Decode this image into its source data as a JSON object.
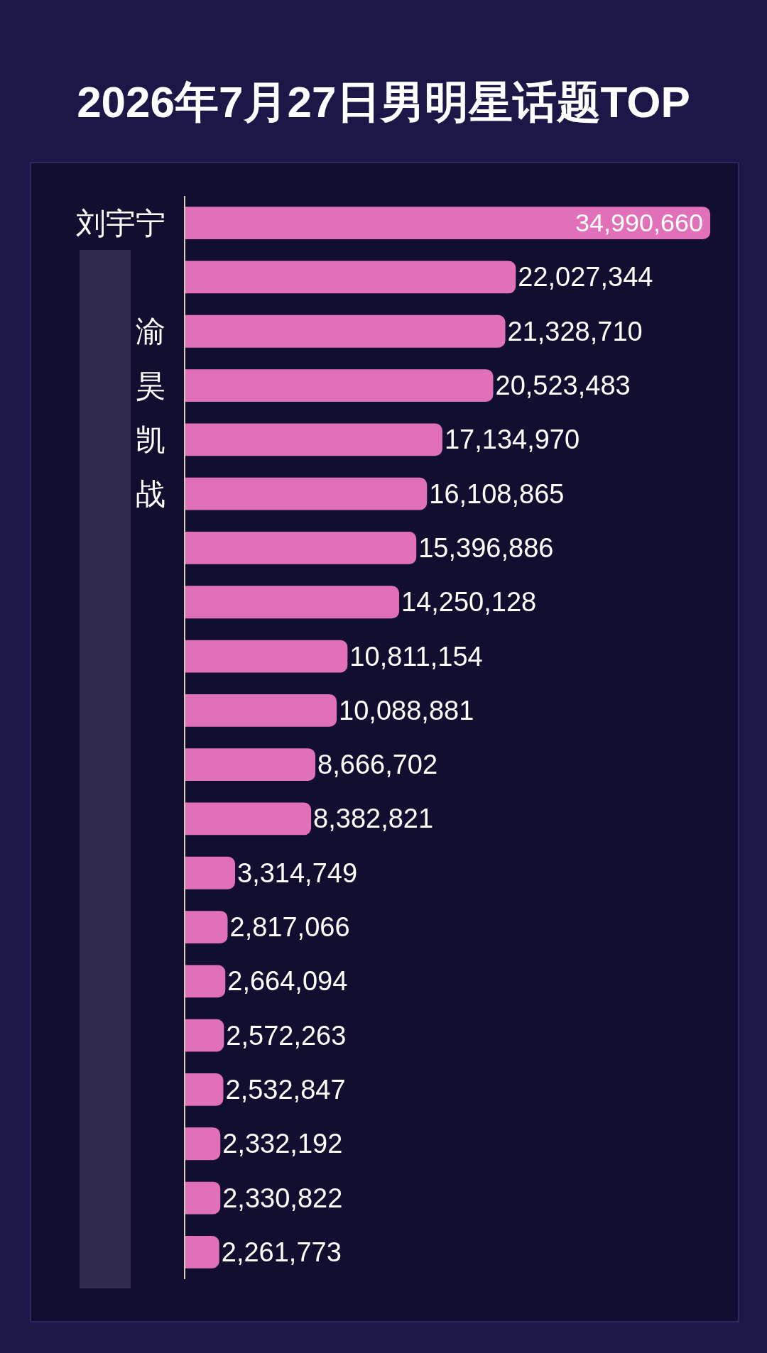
{
  "chart_data": {
    "type": "bar",
    "orientation": "horizontal",
    "title": "2026年7月27日男明星话题TOP",
    "categories": [
      "刘宇宁",
      null,
      "渝",
      "昊",
      "凯",
      "战",
      null,
      null,
      null,
      null,
      null,
      null,
      null,
      null,
      null,
      null,
      null,
      null,
      null,
      null
    ],
    "values": [
      34990660,
      22027344,
      21328710,
      20523483,
      17134970,
      16108865,
      15396886,
      14250128,
      10811154,
      10088881,
      8666702,
      8382821,
      3314749,
      2817066,
      2664094,
      2572263,
      2532847,
      2332192,
      2330822,
      2261773
    ],
    "value_labels": [
      "34,990,660",
      "22,027,344",
      "21,328,710",
      "20,523,483",
      "17,134,970",
      "16,108,865",
      "15,396,886",
      "14,250,128",
      "10,811,154",
      "10,088,881",
      "8,666,702",
      "8,382,821",
      "3,314,749",
      "2,817,066",
      "2,664,094",
      "2,572,263",
      "2,532,847",
      "2,332,192",
      "2,330,822",
      "2,261,773"
    ],
    "color": "#e070b8",
    "tick_labels": "y"
  }
}
